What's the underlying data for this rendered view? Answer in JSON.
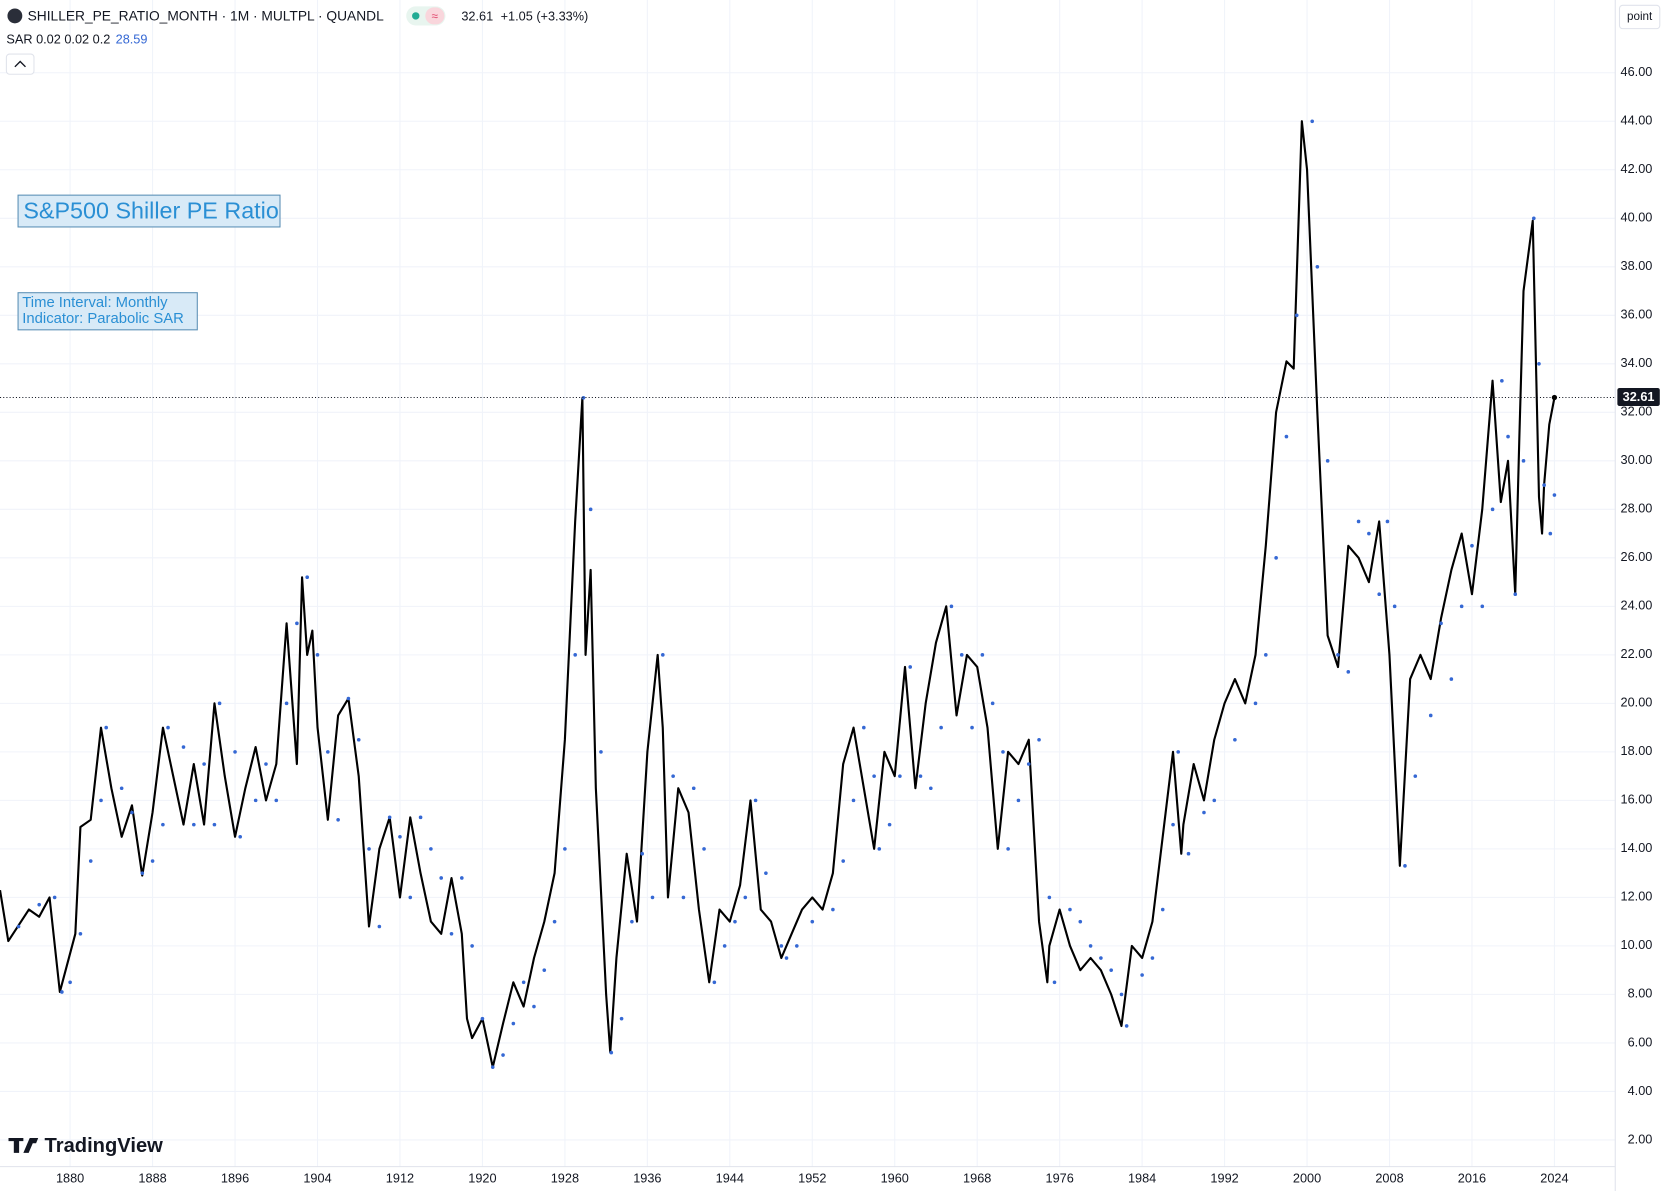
{
  "chart_data": {
    "type": "line",
    "title": "SHILLER_PE_RATIO_MONTH · 1M · MULTPL · QUANDL",
    "change": "+1.05 (+3.33%)",
    "indicator": "SAR 0.02 0.02 0.2",
    "annotations": [
      "S&P500 Shiller PE Ratio",
      "Time Interval: Monthly",
      "Indicator: Parabolic SAR"
    ],
    "brand": "TradingView",
    "scale_mode": "point",
    "grid": true,
    "xlim": [
      1873.2,
      2029.9
    ],
    "ylim": [
      0.9,
      49
    ],
    "xticks": [
      1880,
      1888,
      1896,
      1904,
      1912,
      1920,
      1928,
      1936,
      1944,
      1952,
      1960,
      1968,
      1976,
      1984,
      1992,
      2000,
      2008,
      2016,
      2024
    ],
    "yticks": [
      {
        "value": 2,
        "label": "2.00"
      },
      {
        "value": 4,
        "label": "4.00"
      },
      {
        "value": 6,
        "label": "6.00"
      },
      {
        "value": 8,
        "label": "8.00"
      },
      {
        "value": 10,
        "label": "10.00"
      },
      {
        "value": 12,
        "label": "12.00"
      },
      {
        "value": 14,
        "label": "14.00"
      },
      {
        "value": 16,
        "label": "16.00"
      },
      {
        "value": 18,
        "label": "18.00"
      },
      {
        "value": 20,
        "label": "20.00"
      },
      {
        "value": 22,
        "label": "22.00"
      },
      {
        "value": 24,
        "label": "24.00"
      },
      {
        "value": 26,
        "label": "26.00"
      },
      {
        "value": 28,
        "label": "28.00"
      },
      {
        "value": 30,
        "label": "30.00"
      },
      {
        "value": 32,
        "label": "32.00"
      },
      {
        "value": 34,
        "label": "34.00"
      },
      {
        "value": 36,
        "label": "36.00"
      },
      {
        "value": 38,
        "label": "38.00"
      },
      {
        "value": 40,
        "label": "40.00"
      },
      {
        "value": 42,
        "label": "42.00"
      },
      {
        "value": 44,
        "label": "44.00"
      },
      {
        "value": 46,
        "label": "46.00"
      }
    ],
    "series": [
      {
        "style": "line",
        "color": "#000000",
        "x": [
          1873.2,
          1874,
          1876,
          1877,
          1878,
          1879,
          1880.5,
          1881,
          1882,
          1883,
          1884,
          1885,
          1886,
          1887,
          1888,
          1889,
          1890,
          1891,
          1892,
          1893,
          1894,
          1895,
          1896,
          1897,
          1898,
          1899,
          1900,
          1901,
          1902,
          1902.5,
          1903,
          1903.5,
          1904,
          1905,
          1906,
          1907,
          1908,
          1909,
          1910,
          1911,
          1912,
          1913,
          1914,
          1915,
          1916,
          1917,
          1918,
          1918.5,
          1919,
          1920,
          1921,
          1922,
          1923,
          1924,
          1925,
          1926,
          1927,
          1928,
          1929,
          1929.7,
          1930,
          1930.5,
          1931,
          1932,
          1932.4,
          1933,
          1934,
          1935,
          1936,
          1937,
          1937.5,
          1938,
          1939,
          1940,
          1941,
          1942,
          1943,
          1944,
          1945,
          1946,
          1947,
          1948,
          1949,
          1950,
          1951,
          1952,
          1953,
          1954,
          1955,
          1956,
          1957,
          1958,
          1959,
          1960,
          1961,
          1962,
          1963,
          1964,
          1965,
          1966,
          1967,
          1968,
          1969,
          1970,
          1971,
          1972,
          1973,
          1974,
          1974.8,
          1975,
          1976,
          1977,
          1978,
          1979,
          1980,
          1981,
          1982,
          1983,
          1984,
          1985,
          1986,
          1987,
          1987.8,
          1988,
          1989,
          1990,
          1991,
          1992,
          1993,
          1994,
          1995,
          1996,
          1997,
          1998,
          1998.7,
          1999.5,
          2000,
          2001,
          2002,
          2003,
          2004,
          2005,
          2006,
          2007,
          2008,
          2009,
          2010,
          2011,
          2012,
          2013,
          2014,
          2015,
          2016,
          2017,
          2018,
          2018.8,
          2019.5,
          2020.2,
          2020.6,
          2021,
          2021.9,
          2022.5,
          2022.8,
          2023,
          2023.5,
          2024
        ],
        "values": [
          12.3,
          10.2,
          11.5,
          11.2,
          12.0,
          8.1,
          10.5,
          14.9,
          15.2,
          19.0,
          16.5,
          14.5,
          15.8,
          12.9,
          15.5,
          19.0,
          17.0,
          15.0,
          17.5,
          15.0,
          20.0,
          17.0,
          14.5,
          16.5,
          18.2,
          16.0,
          17.5,
          23.3,
          17.5,
          25.2,
          22.0,
          23.0,
          19.0,
          15.2,
          19.5,
          20.2,
          17.0,
          10.8,
          14.0,
          15.3,
          12.0,
          15.3,
          13.0,
          11.0,
          10.5,
          12.8,
          10.5,
          7.0,
          6.2,
          7.0,
          5.0,
          6.8,
          8.5,
          7.5,
          9.5,
          11.0,
          13.0,
          18.5,
          27.5,
          32.6,
          22.0,
          25.5,
          16.5,
          8.0,
          5.6,
          9.5,
          13.8,
          11.0,
          18.0,
          22.0,
          19.0,
          12.0,
          16.5,
          15.5,
          11.5,
          8.5,
          11.5,
          11.0,
          12.5,
          16.0,
          11.5,
          11.0,
          9.5,
          10.5,
          11.5,
          12.0,
          11.5,
          13.0,
          17.5,
          19.0,
          16.5,
          14.0,
          18.0,
          17.0,
          21.5,
          16.5,
          20.0,
          22.5,
          24.0,
          19.5,
          22.0,
          21.5,
          19.0,
          14.0,
          18.0,
          17.5,
          18.5,
          11.0,
          8.5,
          10.0,
          11.5,
          10.0,
          9.0,
          9.5,
          9.0,
          8.0,
          6.7,
          10.0,
          9.5,
          11.0,
          14.5,
          18.0,
          13.8,
          15.0,
          17.5,
          16.0,
          18.5,
          20.0,
          21.0,
          20.0,
          22.0,
          26.5,
          32.0,
          34.1,
          33.8,
          44.0,
          42.0,
          32.0,
          22.8,
          21.5,
          26.5,
          26.0,
          25.0,
          27.5,
          22.0,
          13.3,
          21.0,
          22.0,
          21.0,
          23.5,
          25.5,
          27.0,
          24.5,
          28.0,
          33.3,
          28.3,
          30.0,
          24.5,
          31.0,
          37.0,
          39.9,
          28.5,
          27.0,
          29.0,
          31.5,
          32.61
        ]
      },
      {
        "style": "dots",
        "color": "#3568d4",
        "x": [
          1873,
          1875,
          1877,
          1878.5,
          1879.2,
          1880,
          1881,
          1882,
          1883,
          1883.5,
          1885,
          1886,
          1887,
          1888,
          1889,
          1889.5,
          1891,
          1892,
          1893,
          1894,
          1894.5,
          1896,
          1896.5,
          1898,
          1899,
          1900,
          1901,
          1902,
          1903,
          1904,
          1905,
          1906,
          1907,
          1908,
          1909,
          1910,
          1911,
          1912,
          1913,
          1914,
          1915,
          1916,
          1917,
          1918,
          1919,
          1920,
          1921,
          1922,
          1923,
          1924,
          1925,
          1926,
          1927,
          1928,
          1929,
          1929.8,
          1930.5,
          1931.5,
          1932.5,
          1933.5,
          1934.5,
          1935.5,
          1936.5,
          1937.5,
          1938.5,
          1939.5,
          1940.5,
          1941.5,
          1942.5,
          1943.5,
          1944.5,
          1945.5,
          1946.5,
          1947.5,
          1949,
          1949.5,
          1950.5,
          1952,
          1954,
          1955,
          1956,
          1957,
          1958,
          1958.5,
          1959.5,
          1960.5,
          1961.5,
          1962.5,
          1963.5,
          1964.5,
          1965.5,
          1966.5,
          1967.5,
          1968.5,
          1969.5,
          1970.5,
          1971,
          1972,
          1973,
          1974,
          1975,
          1975.5,
          1977,
          1978,
          1979,
          1980,
          1981,
          1982,
          1982.5,
          1984,
          1985,
          1986,
          1987,
          1987.5,
          1988.5,
          1990,
          1991,
          1993,
          1995,
          1996,
          1997,
          1998,
          1999,
          2000.5,
          2001,
          2002,
          2003,
          2004,
          2005,
          2006,
          2007,
          2007.8,
          2008.5,
          2009.5,
          2010.5,
          2012,
          2013,
          2014,
          2015,
          2016,
          2017,
          2018,
          2018.9,
          2019.5,
          2020.2,
          2021,
          2022,
          2022.5,
          2023,
          2023.6,
          2024
        ],
        "values": [
          10.2,
          10.8,
          11.7,
          12.0,
          8.1,
          8.5,
          10.5,
          13.5,
          16.0,
          19.0,
          16.5,
          15.5,
          13.0,
          13.5,
          15.0,
          19.0,
          18.2,
          15.0,
          17.5,
          15.0,
          20.0,
          18.0,
          14.5,
          16.0,
          17.5,
          16.0,
          20.0,
          23.3,
          25.2,
          22.0,
          18.0,
          15.2,
          20.2,
          18.5,
          14.0,
          10.8,
          15.3,
          14.5,
          12.0,
          15.3,
          14.0,
          12.8,
          10.5,
          12.8,
          10.0,
          7.0,
          5.0,
          5.5,
          6.8,
          8.5,
          7.5,
          9.0,
          11.0,
          14.0,
          22.0,
          32.6,
          28.0,
          18.0,
          5.6,
          7.0,
          11.0,
          13.8,
          12.0,
          22.0,
          17.0,
          12.0,
          16.5,
          14.0,
          8.5,
          10.0,
          11.0,
          12.0,
          16.0,
          13.0,
          10.0,
          9.5,
          10.0,
          11.0,
          11.5,
          13.5,
          16.0,
          19.0,
          17.0,
          14.0,
          15.0,
          17.0,
          21.5,
          17.0,
          16.5,
          19.0,
          24.0,
          22.0,
          19.0,
          22.0,
          20.0,
          18.0,
          14.0,
          16.0,
          17.5,
          18.5,
          12.0,
          8.5,
          11.5,
          11.0,
          10.0,
          9.5,
          9.0,
          8.0,
          6.7,
          8.8,
          9.5,
          11.5,
          15.0,
          18.0,
          13.8,
          15.5,
          16.0,
          18.5,
          20.0,
          22.0,
          26.0,
          31.0,
          36.0,
          44.0,
          38.0,
          30.0,
          22.0,
          21.3,
          27.5,
          27.0,
          24.5,
          27.5,
          24.0,
          13.3,
          17.0,
          19.5,
          23.3,
          21.0,
          24.0,
          26.5,
          24.0,
          28.0,
          33.3,
          31.0,
          24.5,
          30.0,
          40.0,
          34.0,
          29.0,
          27.0,
          28.59
        ]
      }
    ]
  }
}
